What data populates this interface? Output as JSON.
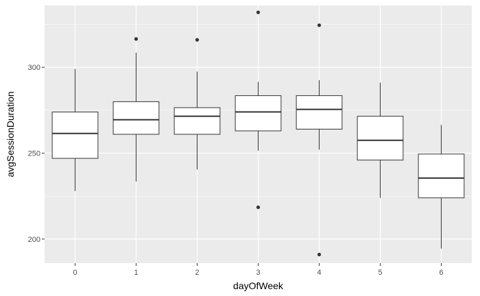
{
  "chart_data": {
    "type": "boxplot",
    "title": "",
    "xlabel": "dayOfWeek",
    "ylabel": "avgSessionDuration",
    "categories": [
      "0",
      "1",
      "2",
      "3",
      "4",
      "5",
      "6"
    ],
    "ylim": [
      186,
      336
    ],
    "yticks": [
      200,
      250,
      300
    ],
    "grid": true,
    "background_color": "#ebebeb",
    "grid_color": "#ffffff",
    "box_fill": "#ffffff",
    "line_color": "#333333",
    "boxes": [
      {
        "category": "0",
        "whisker_low": 228,
        "q1": 247,
        "median": 261.5,
        "q3": 274,
        "whisker_high": 299,
        "outliers": []
      },
      {
        "category": "1",
        "whisker_low": 233.5,
        "q1": 261,
        "median": 269.5,
        "q3": 280,
        "whisker_high": 308.5,
        "outliers": [
          316.5
        ]
      },
      {
        "category": "2",
        "whisker_low": 240.5,
        "q1": 261,
        "median": 271.5,
        "q3": 276.5,
        "whisker_high": 297.5,
        "outliers": [
          316
        ]
      },
      {
        "category": "3",
        "whisker_low": 251.5,
        "q1": 263,
        "median": 274,
        "q3": 283.5,
        "whisker_high": 291.5,
        "outliers": [
          218.5,
          332
        ]
      },
      {
        "category": "4",
        "whisker_low": 252,
        "q1": 264,
        "median": 275.5,
        "q3": 283.5,
        "whisker_high": 292.5,
        "outliers": [
          324.5,
          191
        ]
      },
      {
        "category": "5",
        "whisker_low": 224,
        "q1": 246,
        "median": 257.5,
        "q3": 271.5,
        "whisker_high": 291,
        "outliers": []
      },
      {
        "category": "6",
        "whisker_low": 194.5,
        "q1": 224,
        "median": 235.5,
        "q3": 249.5,
        "whisker_high": 266.5,
        "outliers": []
      }
    ]
  }
}
